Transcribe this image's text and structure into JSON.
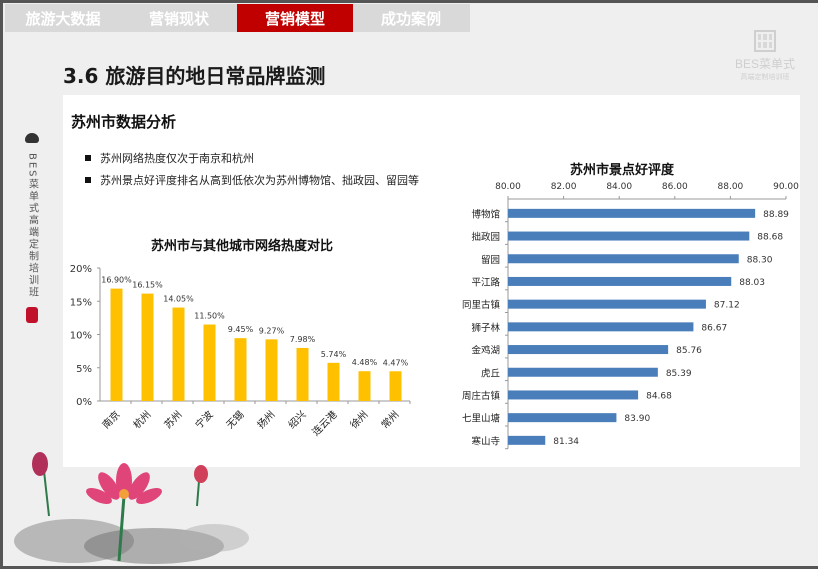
{
  "tabs": [
    {
      "label": "旅游大数据",
      "active": false
    },
    {
      "label": "营销现状",
      "active": false
    },
    {
      "label": "营销模型",
      "active": true
    },
    {
      "label": "成功案例",
      "active": false
    }
  ],
  "logo": {
    "name": "BES菜单式",
    "sub": "高端定制培训班"
  },
  "page_title": "3.6 旅游目的地日常品牌监测",
  "sidebar": {
    "text": "BES菜单式高端定制培训班"
  },
  "card": {
    "title": "苏州市数据分析",
    "bullets": [
      "苏州网络热度仅次于南京和杭州",
      "苏州景点好评度排名从高到低依次为苏州博物馆、拙政园、留园等"
    ]
  },
  "colors": {
    "accent": "#c00000",
    "bar_left": "#ffc000",
    "bar_right": "#4a7ebb"
  },
  "chart_data": [
    {
      "type": "bar",
      "title": "苏州市与其他城市网络热度对比",
      "categories": [
        "南京",
        "杭州",
        "苏州",
        "宁波",
        "无锡",
        "扬州",
        "绍兴",
        "连云港",
        "徐州",
        "常州"
      ],
      "values": [
        16.9,
        16.15,
        14.05,
        11.5,
        9.45,
        9.27,
        7.98,
        5.74,
        4.48,
        4.47
      ],
      "labels": [
        "16.90%",
        "16.15%",
        "14.05%",
        "11.50%",
        "9.45%",
        "9.27%",
        "7.98%",
        "5.74%",
        "4.48%",
        "4.47%"
      ],
      "yticks": [
        "0%",
        "5%",
        "10%",
        "15%",
        "20%"
      ],
      "ylim": [
        0,
        20
      ],
      "xlabel": "",
      "ylabel": "",
      "grid": false
    },
    {
      "type": "bar",
      "orientation": "horizontal",
      "title": "苏州市景点好评度",
      "categories": [
        "博物馆",
        "拙政园",
        "留园",
        "平江路",
        "同里古镇",
        "狮子林",
        "金鸡湖",
        "虎丘",
        "周庄古镇",
        "七里山塘",
        "寒山寺"
      ],
      "values": [
        88.89,
        88.68,
        88.3,
        88.03,
        87.12,
        86.67,
        85.76,
        85.39,
        84.68,
        83.9,
        81.34
      ],
      "labels": [
        "88.89",
        "88.68",
        "88.30",
        "88.03",
        "87.12",
        "86.67",
        "85.76",
        "85.39",
        "84.68",
        "83.90",
        "81.34"
      ],
      "xticks": [
        "80.00",
        "82.00",
        "84.00",
        "86.00",
        "88.00",
        "90.00"
      ],
      "xlim": [
        80,
        90
      ],
      "xaxis_position": "top",
      "xlabel": "",
      "ylabel": "",
      "grid": false
    }
  ]
}
